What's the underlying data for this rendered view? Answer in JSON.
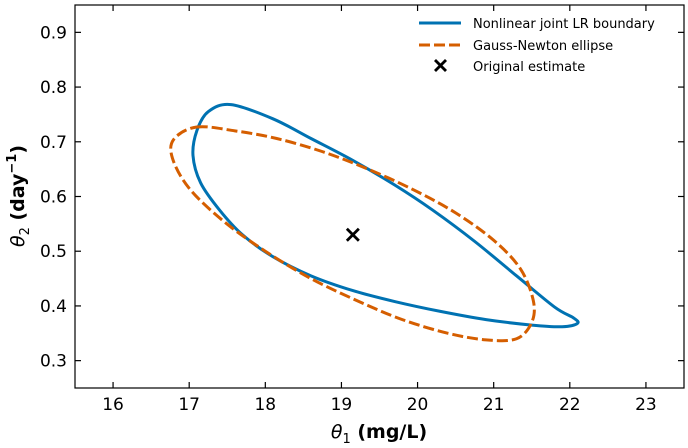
{
  "chart_data": {
    "type": "line",
    "title": "",
    "xlabel": {
      "symbol": "θ",
      "sub": "1",
      "unit": " (mg/L)"
    },
    "ylabel": {
      "symbol": "θ",
      "sub": "2",
      "unit_pre": " (day",
      "unit_sup": "−1",
      "unit_post": ")"
    },
    "xlim": [
      15.5,
      23.5
    ],
    "ylim": [
      0.25,
      0.95
    ],
    "xticks": [
      16,
      17,
      18,
      19,
      20,
      21,
      22,
      23
    ],
    "yticks": [
      0.3,
      0.4,
      0.5,
      0.6,
      0.7,
      0.8,
      0.9
    ],
    "xtick_labels": [
      "16",
      "17",
      "18",
      "19",
      "20",
      "21",
      "22",
      "23"
    ],
    "ytick_labels": [
      "0.3",
      "0.4",
      "0.5",
      "0.6",
      "0.7",
      "0.8",
      "0.9"
    ],
    "grid": false,
    "legend_position": "top-right",
    "series": [
      {
        "name": "Nonlinear joint LR boundary",
        "color": "#0072b2",
        "style": "solid",
        "closed": true,
        "points": [
          [
            17.55,
            0.768
          ],
          [
            18.1,
            0.742
          ],
          [
            18.6,
            0.706
          ],
          [
            19.15,
            0.666
          ],
          [
            19.7,
            0.621
          ],
          [
            20.2,
            0.575
          ],
          [
            20.75,
            0.518
          ],
          [
            21.3,
            0.455
          ],
          [
            21.8,
            0.398
          ],
          [
            22.05,
            0.378
          ],
          [
            22.1,
            0.368
          ],
          [
            21.9,
            0.362
          ],
          [
            21.5,
            0.365
          ],
          [
            20.9,
            0.375
          ],
          [
            20.3,
            0.39
          ],
          [
            19.7,
            0.408
          ],
          [
            19.15,
            0.428
          ],
          [
            18.6,
            0.455
          ],
          [
            18.1,
            0.49
          ],
          [
            17.7,
            0.53
          ],
          [
            17.4,
            0.575
          ],
          [
            17.15,
            0.625
          ],
          [
            17.05,
            0.675
          ],
          [
            17.1,
            0.72
          ],
          [
            17.25,
            0.755
          ],
          [
            17.55,
            0.768
          ]
        ]
      },
      {
        "name": "Gauss-Newton ellipse",
        "color": "#d55e00",
        "style": "dashed",
        "closed": true,
        "points": [
          [
            17.1,
            0.727
          ],
          [
            17.6,
            0.72
          ],
          [
            18.15,
            0.706
          ],
          [
            18.75,
            0.682
          ],
          [
            19.35,
            0.65
          ],
          [
            19.95,
            0.612
          ],
          [
            20.5,
            0.57
          ],
          [
            21.0,
            0.52
          ],
          [
            21.35,
            0.468
          ],
          [
            21.52,
            0.41
          ],
          [
            21.5,
            0.37
          ],
          [
            21.3,
            0.34
          ],
          [
            20.9,
            0.338
          ],
          [
            20.4,
            0.35
          ],
          [
            19.8,
            0.375
          ],
          [
            19.2,
            0.41
          ],
          [
            18.6,
            0.45
          ],
          [
            18.0,
            0.5
          ],
          [
            17.45,
            0.555
          ],
          [
            17.0,
            0.615
          ],
          [
            16.78,
            0.67
          ],
          [
            16.8,
            0.705
          ],
          [
            17.1,
            0.727
          ]
        ]
      },
      {
        "name": "Original estimate",
        "color": "#000000",
        "style": "marker-x",
        "points": [
          [
            19.15,
            0.53
          ]
        ]
      }
    ]
  }
}
